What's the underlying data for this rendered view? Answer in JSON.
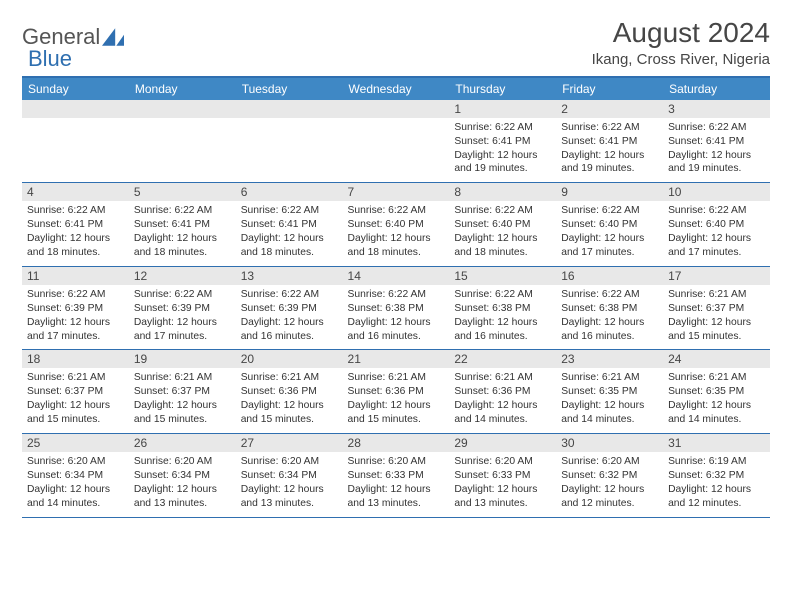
{
  "logo": {
    "text1": "General",
    "text2": "Blue"
  },
  "header": {
    "title": "August 2024",
    "location": "Ikang, Cross River, Nigeria"
  },
  "colors": {
    "header_bar": "#3f88c5",
    "header_text": "#ffffff",
    "daynum_bg": "#e8e8e8",
    "border": "#2f6fb0",
    "title_color": "#464646"
  },
  "weekdays": [
    "Sunday",
    "Monday",
    "Tuesday",
    "Wednesday",
    "Thursday",
    "Friday",
    "Saturday"
  ],
  "grid": [
    [
      {
        "day": "",
        "sunrise": "",
        "sunset": "",
        "daylight": ""
      },
      {
        "day": "",
        "sunrise": "",
        "sunset": "",
        "daylight": ""
      },
      {
        "day": "",
        "sunrise": "",
        "sunset": "",
        "daylight": ""
      },
      {
        "day": "",
        "sunrise": "",
        "sunset": "",
        "daylight": ""
      },
      {
        "day": "1",
        "sunrise": "Sunrise: 6:22 AM",
        "sunset": "Sunset: 6:41 PM",
        "daylight": "Daylight: 12 hours and 19 minutes."
      },
      {
        "day": "2",
        "sunrise": "Sunrise: 6:22 AM",
        "sunset": "Sunset: 6:41 PM",
        "daylight": "Daylight: 12 hours and 19 minutes."
      },
      {
        "day": "3",
        "sunrise": "Sunrise: 6:22 AM",
        "sunset": "Sunset: 6:41 PM",
        "daylight": "Daylight: 12 hours and 19 minutes."
      }
    ],
    [
      {
        "day": "4",
        "sunrise": "Sunrise: 6:22 AM",
        "sunset": "Sunset: 6:41 PM",
        "daylight": "Daylight: 12 hours and 18 minutes."
      },
      {
        "day": "5",
        "sunrise": "Sunrise: 6:22 AM",
        "sunset": "Sunset: 6:41 PM",
        "daylight": "Daylight: 12 hours and 18 minutes."
      },
      {
        "day": "6",
        "sunrise": "Sunrise: 6:22 AM",
        "sunset": "Sunset: 6:41 PM",
        "daylight": "Daylight: 12 hours and 18 minutes."
      },
      {
        "day": "7",
        "sunrise": "Sunrise: 6:22 AM",
        "sunset": "Sunset: 6:40 PM",
        "daylight": "Daylight: 12 hours and 18 minutes."
      },
      {
        "day": "8",
        "sunrise": "Sunrise: 6:22 AM",
        "sunset": "Sunset: 6:40 PM",
        "daylight": "Daylight: 12 hours and 18 minutes."
      },
      {
        "day": "9",
        "sunrise": "Sunrise: 6:22 AM",
        "sunset": "Sunset: 6:40 PM",
        "daylight": "Daylight: 12 hours and 17 minutes."
      },
      {
        "day": "10",
        "sunrise": "Sunrise: 6:22 AM",
        "sunset": "Sunset: 6:40 PM",
        "daylight": "Daylight: 12 hours and 17 minutes."
      }
    ],
    [
      {
        "day": "11",
        "sunrise": "Sunrise: 6:22 AM",
        "sunset": "Sunset: 6:39 PM",
        "daylight": "Daylight: 12 hours and 17 minutes."
      },
      {
        "day": "12",
        "sunrise": "Sunrise: 6:22 AM",
        "sunset": "Sunset: 6:39 PM",
        "daylight": "Daylight: 12 hours and 17 minutes."
      },
      {
        "day": "13",
        "sunrise": "Sunrise: 6:22 AM",
        "sunset": "Sunset: 6:39 PM",
        "daylight": "Daylight: 12 hours and 16 minutes."
      },
      {
        "day": "14",
        "sunrise": "Sunrise: 6:22 AM",
        "sunset": "Sunset: 6:38 PM",
        "daylight": "Daylight: 12 hours and 16 minutes."
      },
      {
        "day": "15",
        "sunrise": "Sunrise: 6:22 AM",
        "sunset": "Sunset: 6:38 PM",
        "daylight": "Daylight: 12 hours and 16 minutes."
      },
      {
        "day": "16",
        "sunrise": "Sunrise: 6:22 AM",
        "sunset": "Sunset: 6:38 PM",
        "daylight": "Daylight: 12 hours and 16 minutes."
      },
      {
        "day": "17",
        "sunrise": "Sunrise: 6:21 AM",
        "sunset": "Sunset: 6:37 PM",
        "daylight": "Daylight: 12 hours and 15 minutes."
      }
    ],
    [
      {
        "day": "18",
        "sunrise": "Sunrise: 6:21 AM",
        "sunset": "Sunset: 6:37 PM",
        "daylight": "Daylight: 12 hours and 15 minutes."
      },
      {
        "day": "19",
        "sunrise": "Sunrise: 6:21 AM",
        "sunset": "Sunset: 6:37 PM",
        "daylight": "Daylight: 12 hours and 15 minutes."
      },
      {
        "day": "20",
        "sunrise": "Sunrise: 6:21 AM",
        "sunset": "Sunset: 6:36 PM",
        "daylight": "Daylight: 12 hours and 15 minutes."
      },
      {
        "day": "21",
        "sunrise": "Sunrise: 6:21 AM",
        "sunset": "Sunset: 6:36 PM",
        "daylight": "Daylight: 12 hours and 15 minutes."
      },
      {
        "day": "22",
        "sunrise": "Sunrise: 6:21 AM",
        "sunset": "Sunset: 6:36 PM",
        "daylight": "Daylight: 12 hours and 14 minutes."
      },
      {
        "day": "23",
        "sunrise": "Sunrise: 6:21 AM",
        "sunset": "Sunset: 6:35 PM",
        "daylight": "Daylight: 12 hours and 14 minutes."
      },
      {
        "day": "24",
        "sunrise": "Sunrise: 6:21 AM",
        "sunset": "Sunset: 6:35 PM",
        "daylight": "Daylight: 12 hours and 14 minutes."
      }
    ],
    [
      {
        "day": "25",
        "sunrise": "Sunrise: 6:20 AM",
        "sunset": "Sunset: 6:34 PM",
        "daylight": "Daylight: 12 hours and 14 minutes."
      },
      {
        "day": "26",
        "sunrise": "Sunrise: 6:20 AM",
        "sunset": "Sunset: 6:34 PM",
        "daylight": "Daylight: 12 hours and 13 minutes."
      },
      {
        "day": "27",
        "sunrise": "Sunrise: 6:20 AM",
        "sunset": "Sunset: 6:34 PM",
        "daylight": "Daylight: 12 hours and 13 minutes."
      },
      {
        "day": "28",
        "sunrise": "Sunrise: 6:20 AM",
        "sunset": "Sunset: 6:33 PM",
        "daylight": "Daylight: 12 hours and 13 minutes."
      },
      {
        "day": "29",
        "sunrise": "Sunrise: 6:20 AM",
        "sunset": "Sunset: 6:33 PM",
        "daylight": "Daylight: 12 hours and 13 minutes."
      },
      {
        "day": "30",
        "sunrise": "Sunrise: 6:20 AM",
        "sunset": "Sunset: 6:32 PM",
        "daylight": "Daylight: 12 hours and 12 minutes."
      },
      {
        "day": "31",
        "sunrise": "Sunrise: 6:19 AM",
        "sunset": "Sunset: 6:32 PM",
        "daylight": "Daylight: 12 hours and 12 minutes."
      }
    ]
  ]
}
